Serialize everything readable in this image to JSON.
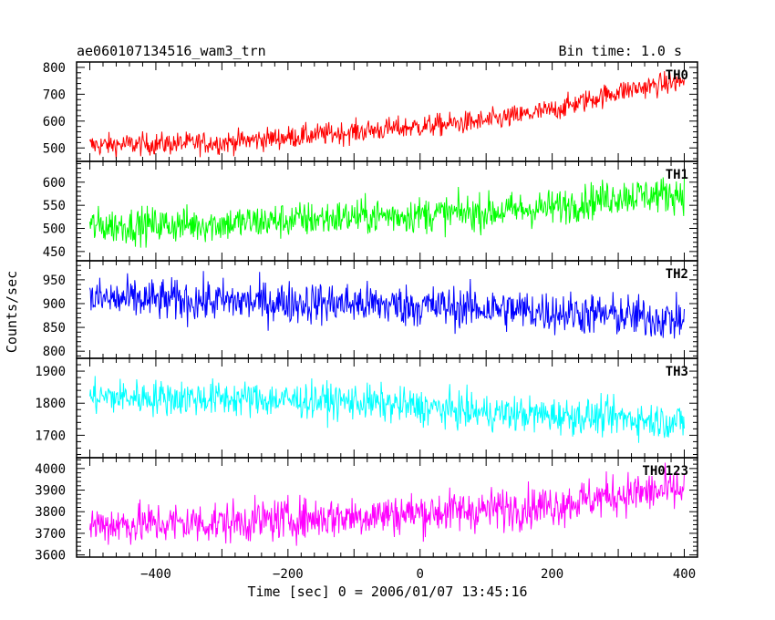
{
  "header": {
    "title": "ae060107134516_wam3_trn",
    "bin_time": "Bin time: 1.0 s"
  },
  "chart_data": {
    "type": "line",
    "xlabel": "Time [sec] 0 = 2006/01/07 13:45:16",
    "ylabel": "Counts/sec",
    "xlim": [
      -520,
      420
    ],
    "x_ticks": [
      -400,
      -200,
      0,
      200,
      400
    ],
    "x_tick_labels": [
      "−400",
      "−200",
      "0",
      "200",
      "400"
    ],
    "x_range_data": [
      -500,
      400
    ],
    "panels": [
      {
        "name": "TH0",
        "color": "#ff0000",
        "ylim": [
          450,
          820
        ],
        "y_ticks": [
          500,
          600,
          700,
          800
        ],
        "trend": [
          [
            -500,
            510
          ],
          [
            -300,
            520
          ],
          [
            -100,
            560
          ],
          [
            100,
            600
          ],
          [
            200,
            640
          ],
          [
            300,
            710
          ],
          [
            400,
            750
          ]
        ],
        "scatter": 30
      },
      {
        "name": "TH1",
        "color": "#00ff00",
        "ylim": [
          430,
          645
        ],
        "y_ticks": [
          450,
          500,
          550,
          600
        ],
        "trend": [
          [
            -500,
            505
          ],
          [
            -300,
            510
          ],
          [
            -100,
            525
          ],
          [
            100,
            535
          ],
          [
            200,
            545
          ],
          [
            300,
            570
          ],
          [
            400,
            575
          ]
        ],
        "scatter": 28
      },
      {
        "name": "TH2",
        "color": "#0000ff",
        "ylim": [
          785,
          990
        ],
        "y_ticks": [
          800,
          850,
          900,
          950
        ],
        "trend": [
          [
            -500,
            910
          ],
          [
            -300,
            905
          ],
          [
            -100,
            900
          ],
          [
            100,
            890
          ],
          [
            300,
            875
          ],
          [
            400,
            865
          ]
        ],
        "scatter": 32
      },
      {
        "name": "TH3",
        "color": "#00ffff",
        "ylim": [
          1630,
          1940
        ],
        "y_ticks": [
          1700,
          1800,
          1900
        ],
        "trend": [
          [
            -500,
            1820
          ],
          [
            -300,
            1815
          ],
          [
            -100,
            1805
          ],
          [
            100,
            1770
          ],
          [
            300,
            1755
          ],
          [
            400,
            1740
          ]
        ],
        "scatter": 40
      },
      {
        "name": "TH0123",
        "color": "#ff00ff",
        "ylim": [
          3590,
          4050
        ],
        "y_ticks": [
          3600,
          3700,
          3800,
          3900,
          4000
        ],
        "trend": [
          [
            -500,
            3740
          ],
          [
            -300,
            3750
          ],
          [
            -100,
            3780
          ],
          [
            100,
            3810
          ],
          [
            200,
            3830
          ],
          [
            300,
            3880
          ],
          [
            400,
            3900
          ]
        ],
        "scatter": 70
      }
    ]
  }
}
